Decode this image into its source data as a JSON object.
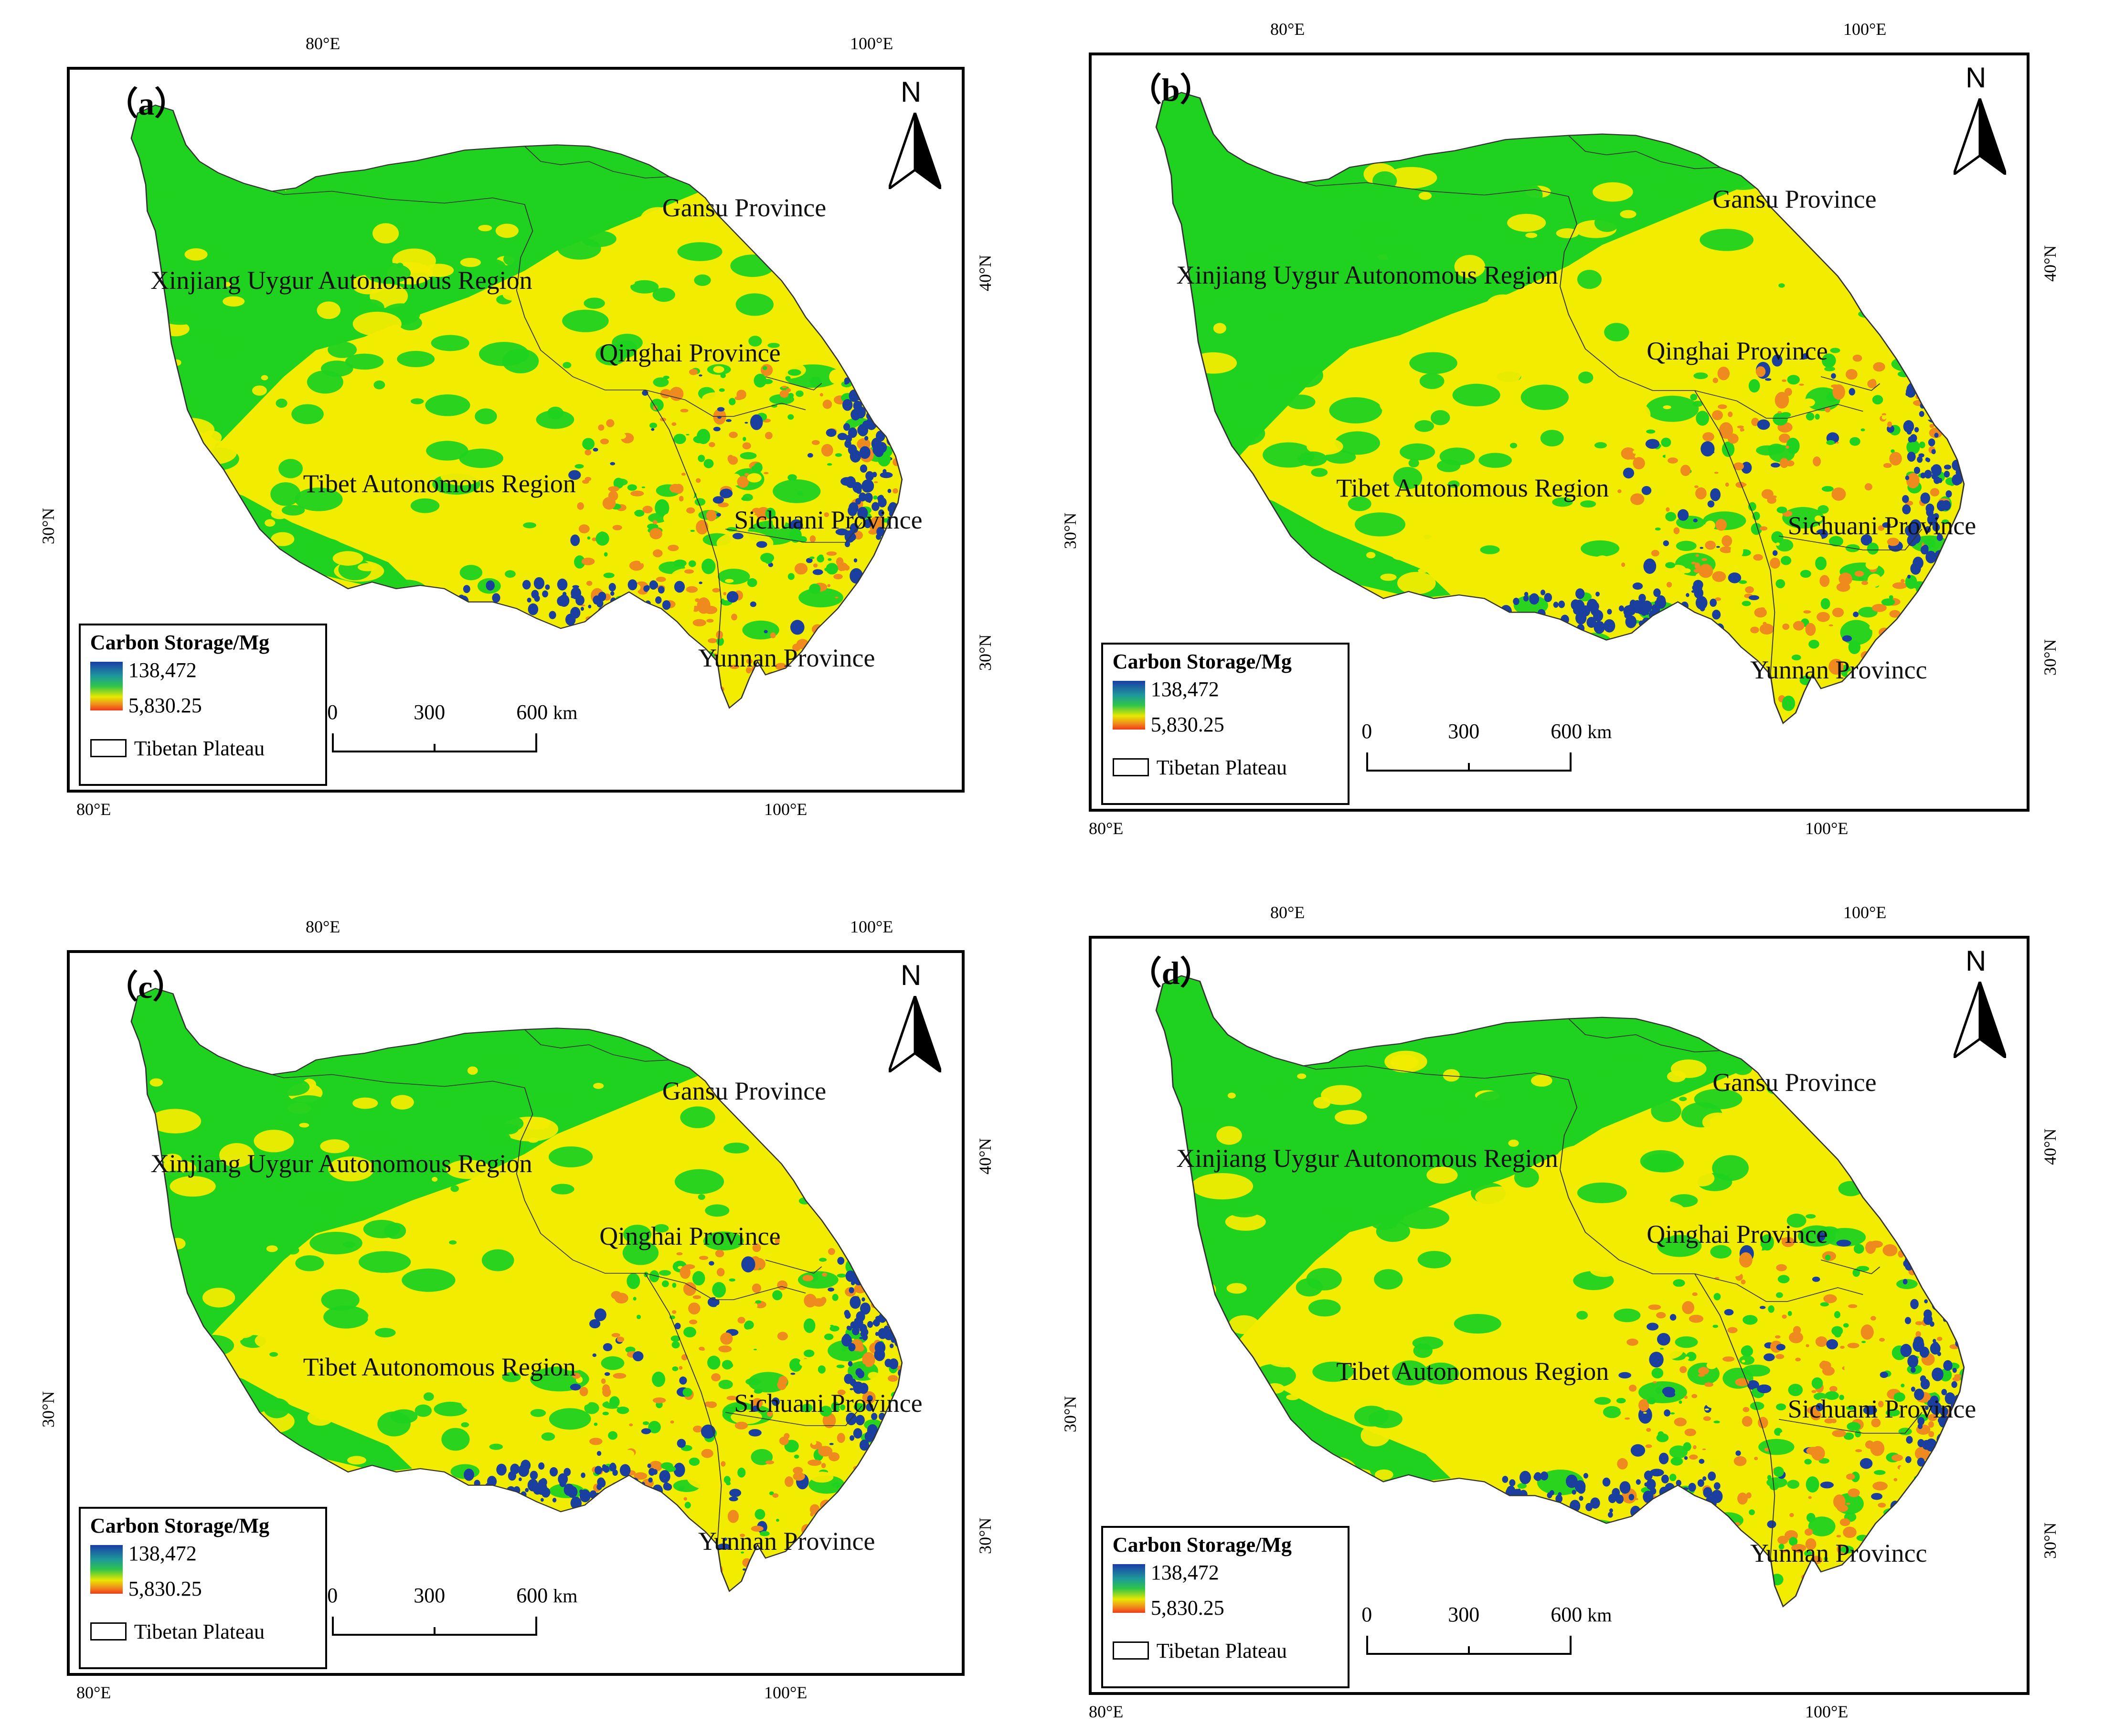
{
  "axes": {
    "lon_labels": [
      "80°E",
      "100°E"
    ],
    "lat_labels_left": [
      "30°N"
    ],
    "lat_labels_right": [
      "40°N",
      "30°N"
    ]
  },
  "legend": {
    "title": "Carbon Storage/Mg",
    "high": "138,472",
    "low": "5,830.25",
    "boundary_label": "Tibetan Plateau",
    "ramp_colors": [
      "#1a3ea8",
      "#1e9a9a",
      "#2fc44a",
      "#e8e800",
      "#f08a1c",
      "#f03a18"
    ]
  },
  "scale": {
    "ticks": [
      "0",
      "300",
      "600"
    ],
    "unit": "km"
  },
  "north_arrow": "N",
  "regions": {
    "gansu": "Gansu Province",
    "xinjiang": "Xinjiang Uygur Autonomous Region",
    "qinghai": "Qinghai Province",
    "tibet": "Tibet Autonomous Region",
    "sichuan": "Sichuani Province",
    "yunnan": "Yunnan Province",
    "yunnan_alt": "Yunnan Provincc"
  },
  "panels": [
    {
      "label": "（a）"
    },
    {
      "label": "（b）"
    },
    {
      "label": "（c）"
    },
    {
      "label": "（d）"
    }
  ],
  "colors": {
    "green": "#1fd21f",
    "yellow": "#f2ec00",
    "orange": "#ee8a1e",
    "blue": "#1b3f9e",
    "frame": "#000000"
  }
}
